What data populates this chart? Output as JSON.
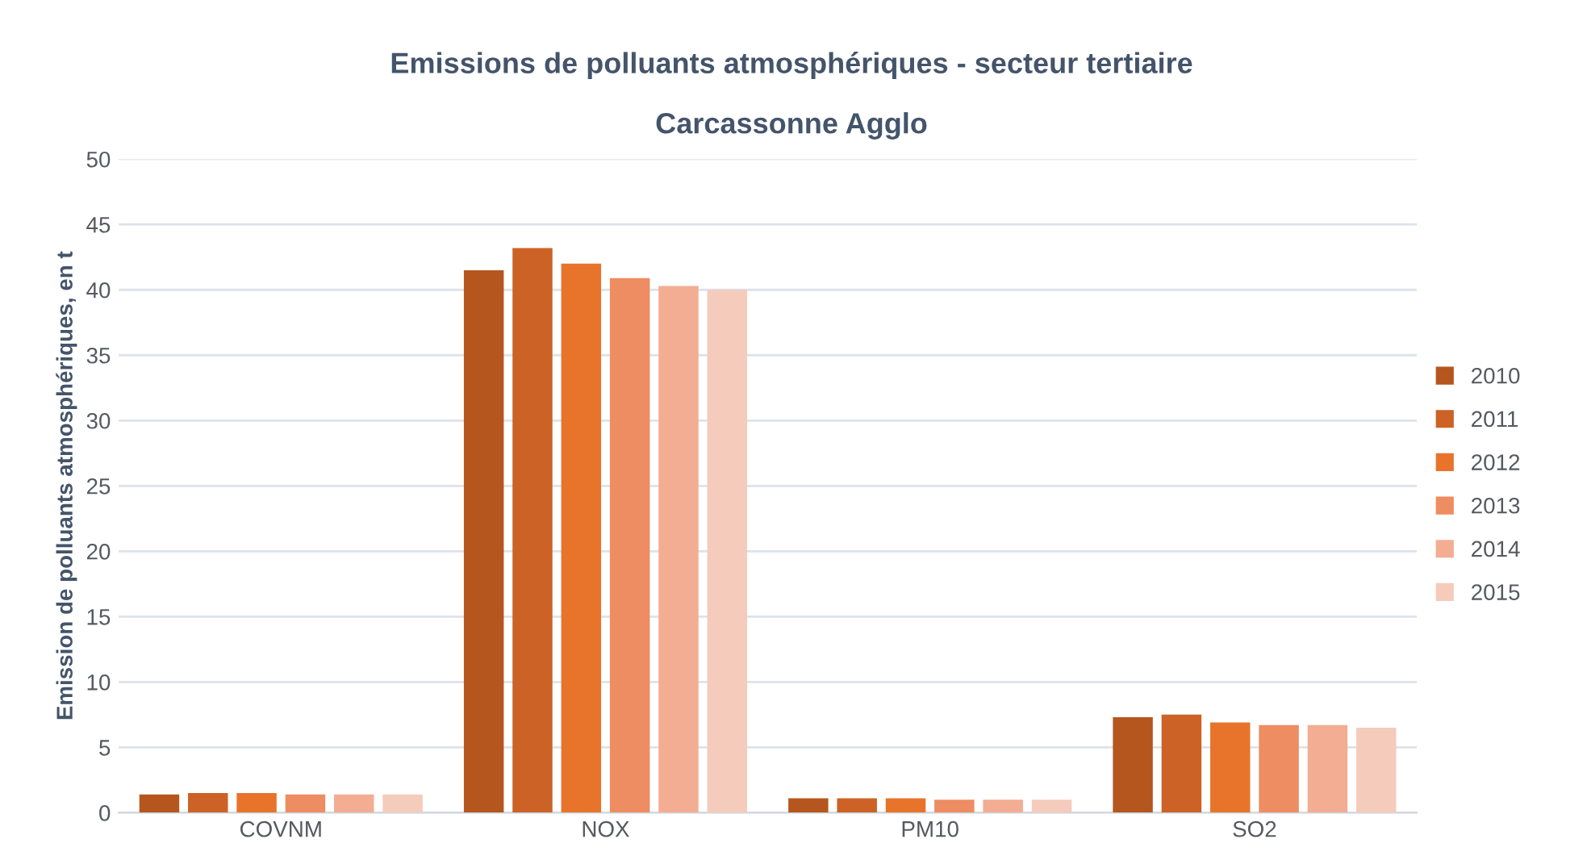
{
  "chart_data": {
    "type": "bar",
    "title": "Emissions de polluants atmosphériques - secteur tertiaire",
    "subtitle": "Carcassonne Agglo",
    "ylabel": "Emission de polluants atmosphériques, en t",
    "categories": [
      "COVNM",
      "NOX",
      "PM10",
      "SO2"
    ],
    "series": [
      {
        "name": "2010",
        "color": "#b5561f",
        "values": [
          1.4,
          41.5,
          1.1,
          7.3
        ]
      },
      {
        "name": "2011",
        "color": "#cc6226",
        "values": [
          1.5,
          43.2,
          1.1,
          7.5
        ]
      },
      {
        "name": "2012",
        "color": "#e8742b",
        "values": [
          1.5,
          42.0,
          1.1,
          6.9
        ]
      },
      {
        "name": "2013",
        "color": "#ee8c62",
        "values": [
          1.4,
          40.9,
          1.0,
          6.7
        ]
      },
      {
        "name": "2014",
        "color": "#f2ad92",
        "values": [
          1.4,
          40.3,
          1.0,
          6.7
        ]
      },
      {
        "name": "2015",
        "color": "#f5cbbc",
        "values": [
          1.4,
          40.0,
          1.0,
          6.5
        ]
      }
    ],
    "ylim": [
      0,
      50
    ],
    "yticks": [
      0,
      5,
      10,
      15,
      20,
      25,
      30,
      35,
      40,
      45,
      50
    ],
    "grid": "y",
    "legend": "right"
  }
}
